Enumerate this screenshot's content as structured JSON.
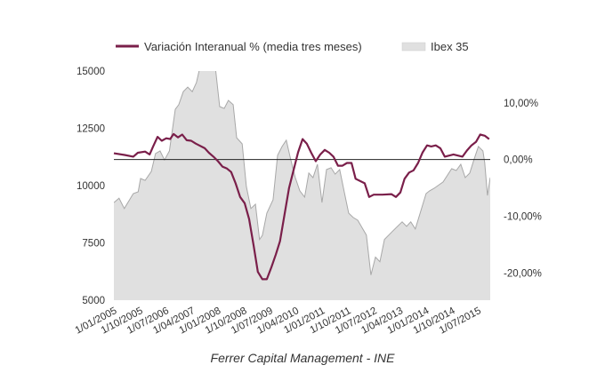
{
  "chart_data": {
    "type": "line+area",
    "legend": [
      "Variación Interanual % (media tres meses)",
      "Ibex 35"
    ],
    "legend_position": "top",
    "colors": {
      "line": "#7a1f4a",
      "area": "#e0e0e0",
      "area_stroke": "#a8a8a8",
      "zero": "#222222"
    },
    "x_range": [
      2005.0,
      2015.85
    ],
    "left_axis": {
      "ticks": [
        "15000",
        "12500",
        "10000",
        "7500",
        "5000"
      ],
      "tick_values": [
        15000,
        12500,
        10000,
        7500,
        5000
      ],
      "ylim": [
        5000,
        15000
      ]
    },
    "right_axis": {
      "ticks": [
        "10,00%",
        "0,00%",
        "-10,00%",
        "-20,00%"
      ],
      "tick_values": [
        10,
        0,
        -10,
        -20
      ],
      "ylim": [
        -24.8,
        15.6
      ]
    },
    "x_ticks": [
      "1/01/2005",
      "1/10/2005",
      "1/07/2006",
      "1/04/2007",
      "1/01/2008",
      "1/10/2008",
      "1/07/2009",
      "1/04/2010",
      "1/01/2011",
      "1/10/2011",
      "1/07/2012",
      "1/04/2013",
      "1/01/2014",
      "1/10/2014",
      "1/07/2015"
    ],
    "x_tick_values": [
      2005.0,
      2005.75,
      2006.5,
      2007.25,
      2008.0,
      2008.75,
      2009.5,
      2010.25,
      2011.0,
      2011.75,
      2012.5,
      2013.25,
      2014.0,
      2014.75,
      2015.5
    ],
    "ibex": {
      "name": "Ibex 35",
      "x": [
        2005.0,
        2005.15,
        2005.3,
        2005.56,
        2005.7,
        2005.77,
        2005.9,
        2006.08,
        2006.2,
        2006.33,
        2006.46,
        2006.6,
        2006.77,
        2006.87,
        2007.0,
        2007.13,
        2007.26,
        2007.38,
        2007.5,
        2007.7,
        2007.9,
        2008.05,
        2008.18,
        2008.3,
        2008.44,
        2008.54,
        2008.7,
        2008.82,
        2008.95,
        2009.08,
        2009.2,
        2009.28,
        2009.41,
        2009.59,
        2009.72,
        2009.85,
        2009.97,
        2010.1,
        2010.23,
        2010.36,
        2010.5,
        2010.62,
        2010.74,
        2010.87,
        2011.0,
        2011.13,
        2011.26,
        2011.38,
        2011.51,
        2011.64,
        2011.77,
        2011.9,
        2012.03,
        2012.28,
        2012.41,
        2012.54,
        2012.67,
        2012.8,
        2013.05,
        2013.31,
        2013.44,
        2013.56,
        2013.69,
        2014.0,
        2014.1,
        2014.23,
        2014.49,
        2014.74,
        2014.87,
        2015.0,
        2015.13,
        2015.26,
        2015.38,
        2015.51,
        2015.64,
        2015.69,
        2015.77,
        2015.85
      ],
      "values": [
        9260,
        9450,
        9000,
        9650,
        9730,
        10310,
        10230,
        10620,
        11400,
        11510,
        11120,
        11510,
        13330,
        13530,
        14100,
        14300,
        14100,
        14500,
        15300,
        15800,
        15500,
        13450,
        13370,
        13720,
        13530,
        12090,
        11820,
        9960,
        9000,
        9190,
        7650,
        7830,
        8800,
        9380,
        11320,
        11710,
        11980,
        11130,
        10350,
        9770,
        9500,
        10550,
        10350,
        10930,
        9260,
        10700,
        10780,
        10500,
        10700,
        9730,
        8800,
        8610,
        8490,
        7840,
        6100,
        6880,
        6680,
        7650,
        8030,
        8420,
        8220,
        8420,
        8110,
        9650,
        9770,
        9880,
        10160,
        10740,
        10660,
        10930,
        10350,
        10550,
        11130,
        11710,
        11510,
        11000,
        9570,
        10350
      ]
    },
    "variation": {
      "name": "Variación Interanual % (media tres meses)",
      "x": [
        2005.0,
        2005.31,
        2005.56,
        2005.69,
        2005.9,
        2006.03,
        2006.13,
        2006.26,
        2006.38,
        2006.51,
        2006.62,
        2006.72,
        2006.85,
        2006.97,
        2007.1,
        2007.23,
        2007.36,
        2007.62,
        2007.74,
        2007.87,
        2008.0,
        2008.13,
        2008.26,
        2008.38,
        2008.51,
        2008.64,
        2008.77,
        2008.9,
        2009.03,
        2009.15,
        2009.28,
        2009.41,
        2009.54,
        2009.67,
        2009.79,
        2009.92,
        2010.05,
        2010.18,
        2010.31,
        2010.44,
        2010.56,
        2010.69,
        2010.82,
        2010.95,
        2011.08,
        2011.21,
        2011.33,
        2011.46,
        2011.59,
        2011.72,
        2011.85,
        2011.97,
        2012.23,
        2012.36,
        2012.49,
        2012.74,
        2013.0,
        2013.13,
        2013.26,
        2013.38,
        2013.51,
        2013.64,
        2013.77,
        2013.9,
        2014.03,
        2014.15,
        2014.28,
        2014.41,
        2014.54,
        2014.79,
        2015.05,
        2015.18,
        2015.31,
        2015.44,
        2015.56,
        2015.69,
        2015.82
      ],
      "values": [
        1.1,
        0.8,
        0.5,
        1.2,
        1.4,
        0.9,
        2.3,
        4.0,
        3.3,
        3.75,
        3.6,
        4.5,
        3.9,
        4.4,
        3.4,
        3.3,
        2.8,
        2.0,
        1.2,
        0.5,
        -0.3,
        -1.25,
        -1.6,
        -2.2,
        -4.2,
        -6.6,
        -7.7,
        -10.5,
        -15.2,
        -19.8,
        -21.1,
        -21.1,
        -19.0,
        -16.7,
        -14.4,
        -9.7,
        -5.0,
        -1.9,
        1.25,
        3.6,
        2.8,
        1.2,
        -0.3,
        0.9,
        1.7,
        1.2,
        0.5,
        -1.1,
        -1.1,
        -0.6,
        -0.6,
        -3.4,
        -4.2,
        -6.6,
        -6.2,
        -6.2,
        -6.1,
        -6.6,
        -5.8,
        -3.4,
        -2.3,
        -1.9,
        -0.6,
        1.25,
        2.5,
        2.3,
        2.5,
        2.0,
        0.5,
        0.9,
        0.5,
        1.6,
        2.5,
        3.1,
        4.4,
        4.2,
        3.6
      ]
    },
    "source": "Ferrer Capital Management - INE"
  }
}
